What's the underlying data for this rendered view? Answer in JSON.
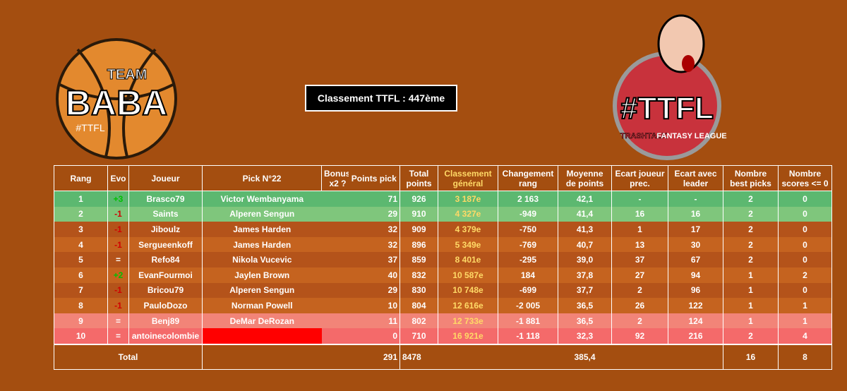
{
  "logos": {
    "left": {
      "top": "TEAM",
      "main": "BABA",
      "tag": "#TTFL"
    },
    "right": {
      "main": "#TTFL",
      "sub1": "TRASHTALK",
      "sub2": "FANTASY LEAGUE"
    }
  },
  "title": "Classement TTFL : 447ème",
  "table": {
    "columns": [
      "Rang",
      "Evo",
      "Joueur",
      "Pick N°22",
      "Bonus x2 ?",
      "Points pick",
      "Total points",
      "Classement général",
      "Changement rang",
      "Moyenne de points",
      "Ecart joueur prec.",
      "Ecart avec leader",
      "Nombre best picks",
      "Nombre scores <= 0"
    ],
    "rows": [
      {
        "rang": 1,
        "evo": "+3",
        "joueur": "Brasco79",
        "pick": "Victor Wembanyama",
        "points_pick": 71,
        "total": 926,
        "classement": "3 187e",
        "changement": "2 163",
        "moyenne": "42,1",
        "ecart_prec": "-",
        "ecart_leader": "-",
        "best_picks": 2,
        "scores": 0
      },
      {
        "rang": 2,
        "evo": "-1",
        "joueur": "Saints",
        "pick": "Alperen Sengun",
        "points_pick": 29,
        "total": 910,
        "classement": "4 327e",
        "changement": "-949",
        "moyenne": "41,4",
        "ecart_prec": 16,
        "ecart_leader": 16,
        "best_picks": 2,
        "scores": 0
      },
      {
        "rang": 3,
        "evo": "-1",
        "joueur": "Jiboulz",
        "pick": "James Harden",
        "points_pick": 32,
        "total": 909,
        "classement": "4 379e",
        "changement": "-750",
        "moyenne": "41,3",
        "ecart_prec": 1,
        "ecart_leader": 17,
        "best_picks": 2,
        "scores": 0
      },
      {
        "rang": 4,
        "evo": "-1",
        "joueur": "Sergueenkoff",
        "pick": "James Harden",
        "points_pick": 32,
        "total": 896,
        "classement": "5 349e",
        "changement": "-769",
        "moyenne": "40,7",
        "ecart_prec": 13,
        "ecart_leader": 30,
        "best_picks": 2,
        "scores": 0
      },
      {
        "rang": 5,
        "evo": "=",
        "joueur": "Refo84",
        "pick": "Nikola Vucevic",
        "points_pick": 37,
        "total": 859,
        "classement": "8 401e",
        "changement": "-295",
        "moyenne": "39,0",
        "ecart_prec": 37,
        "ecart_leader": 67,
        "best_picks": 2,
        "scores": 0
      },
      {
        "rang": 6,
        "evo": "+2",
        "joueur": "EvanFourmoi",
        "pick": "Jaylen Brown",
        "points_pick": 40,
        "total": 832,
        "classement": "10 587e",
        "changement": "184",
        "moyenne": "37,8",
        "ecart_prec": 27,
        "ecart_leader": 94,
        "best_picks": 1,
        "scores": 2
      },
      {
        "rang": 7,
        "evo": "-1",
        "joueur": "Bricou79",
        "pick": "Alperen Sengun",
        "points_pick": 29,
        "total": 830,
        "classement": "10 748e",
        "changement": "-699",
        "moyenne": "37,7",
        "ecart_prec": 2,
        "ecart_leader": 96,
        "best_picks": 1,
        "scores": 0
      },
      {
        "rang": 8,
        "evo": "-1",
        "joueur": "PauloDozo",
        "pick": "Norman Powell",
        "points_pick": 10,
        "total": 804,
        "classement": "12 616e",
        "changement": "-2 005",
        "moyenne": "36,5",
        "ecart_prec": 26,
        "ecart_leader": 122,
        "best_picks": 1,
        "scores": 1
      },
      {
        "rang": 9,
        "evo": "=",
        "joueur": "Benj89",
        "pick": "DeMar DeRozan",
        "points_pick": 11,
        "total": 802,
        "classement": "12 733e",
        "changement": "-1 881",
        "moyenne": "36,5",
        "ecart_prec": 2,
        "ecart_leader": 124,
        "best_picks": 1,
        "scores": 1
      },
      {
        "rang": 10,
        "evo": "=",
        "joueur": "antoinecolombie",
        "points_pick": 0,
        "total": 710,
        "classement": "16 921e",
        "changement": "-1 118",
        "moyenne": "32,3",
        "ecart_prec": 92,
        "ecart_leader": 216,
        "best_picks": 2,
        "scores": 4
      }
    ],
    "totals": {
      "label": "Total",
      "points_pick": 291,
      "total": 8478,
      "moyenne": "385,4",
      "best_picks": 16,
      "scores": 8
    }
  }
}
